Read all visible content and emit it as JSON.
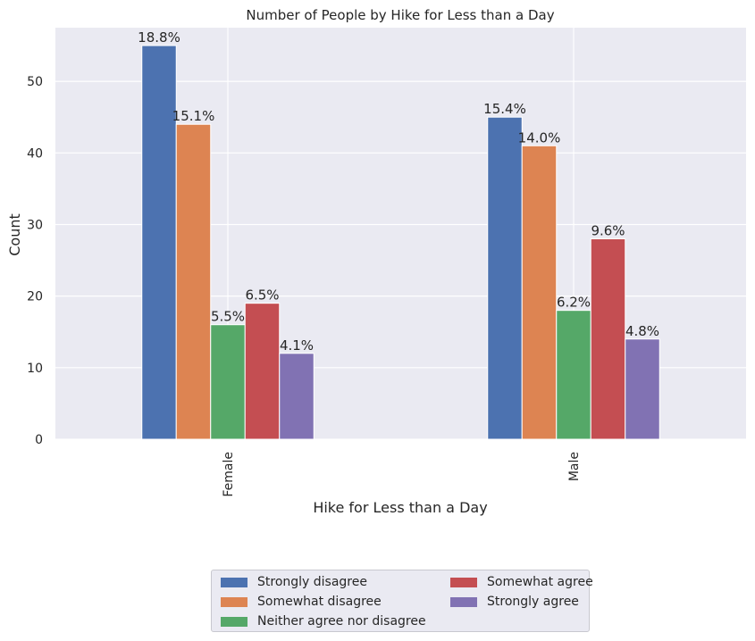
{
  "chart_data": {
    "type": "bar",
    "title": "Number of People by Hike for Less than a Day",
    "xlabel": "Hike for Less than a Day",
    "ylabel": "Count",
    "categories": [
      "Female",
      "Male"
    ],
    "ylim": [
      0,
      57.5
    ],
    "yticks": [
      0,
      10,
      20,
      30,
      40,
      50
    ],
    "grid": true,
    "legend_position": "bottom-center",
    "series": [
      {
        "name": "Strongly disagree",
        "color": "#4c72b0",
        "values": [
          55,
          45
        ],
        "labels": [
          "18.8%",
          "15.4%"
        ]
      },
      {
        "name": "Somewhat disagree",
        "color": "#dd8452",
        "values": [
          44,
          41
        ],
        "labels": [
          "15.1%",
          "14.0%"
        ]
      },
      {
        "name": "Neither agree nor disagree",
        "color": "#55a868",
        "values": [
          16,
          18
        ],
        "labels": [
          "5.5%",
          "6.2%"
        ]
      },
      {
        "name": "Somewhat agree",
        "color": "#c44e52",
        "values": [
          19,
          28
        ],
        "labels": [
          "6.5%",
          "9.6%"
        ]
      },
      {
        "name": "Strongly agree",
        "color": "#8172b3",
        "values": [
          12,
          14
        ],
        "labels": [
          "4.1%",
          "4.8%"
        ]
      }
    ]
  }
}
